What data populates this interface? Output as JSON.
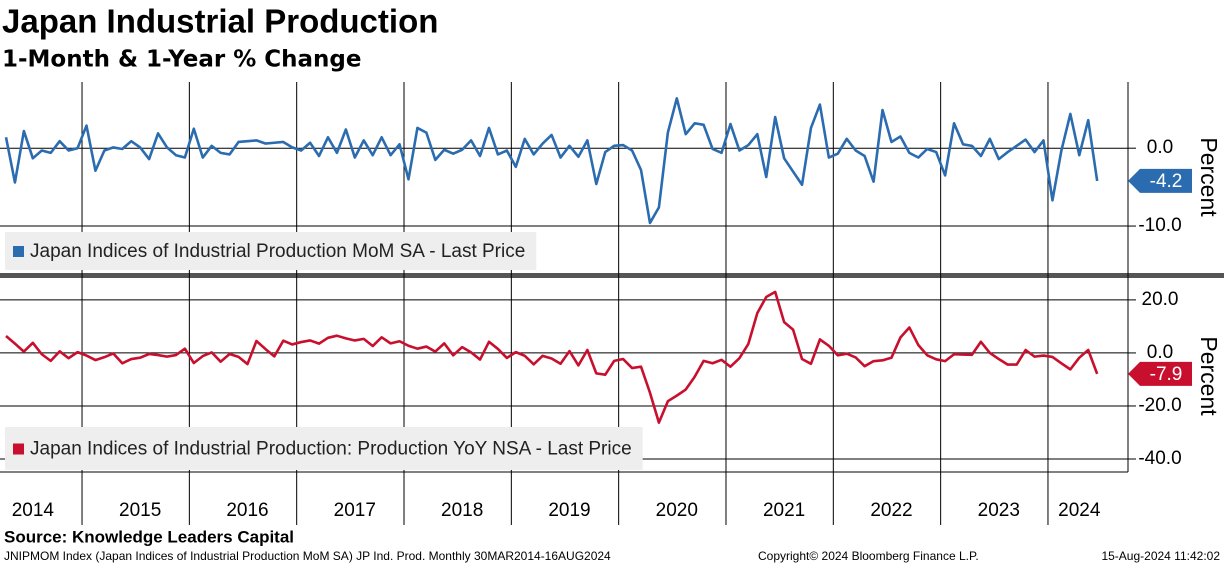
{
  "chart_data": [
    {
      "type": "line",
      "title": "Japan Industrial Production",
      "subtitle": "1-Month & 1-Year % Change",
      "y_label": "Percent",
      "ylim": [
        -15.9,
        8.5
      ],
      "yticks": [
        {
          "value": -10,
          "label": "-10.0"
        },
        {
          "value": 0,
          "label": "0.0"
        }
      ],
      "grid": true,
      "series": [
        {
          "name": "Japan Indices of Industrial Production MoM SA - Last Price",
          "color": "#2b6cb0",
          "values": [
            1.4,
            -4.4,
            2.2,
            -1.3,
            -0.3,
            -0.6,
            0.9,
            -0.3,
            0.0,
            2.9,
            -2.9,
            -0.3,
            0.1,
            -0.1,
            0.9,
            0.1,
            -1.4,
            1.9,
            0.1,
            -0.9,
            -1.2,
            2.5,
            -1.2,
            0.3,
            -0.6,
            -0.8,
            0.8,
            0.9,
            1.0,
            0.6,
            0.7,
            0.8,
            0.1,
            -0.3,
            0.7,
            -1.0,
            1.4,
            -0.6,
            2.4,
            -1.2,
            1.0,
            -0.9,
            1.4,
            -0.9,
            0.5,
            -4.0,
            2.6,
            2.0,
            -1.5,
            -0.2,
            -0.7,
            -0.2,
            1.0,
            -1.0,
            2.6,
            -0.8,
            -0.3,
            -2.4,
            1.2,
            -0.8,
            0.6,
            1.7,
            -1.2,
            0.3,
            -1.1,
            1.0,
            -4.6,
            -0.5,
            0.3,
            0.4,
            -0.3,
            -2.8,
            -9.6,
            -7.6,
            2.0,
            6.4,
            1.8,
            3.2,
            3.0,
            -0.1,
            -0.6,
            3.1,
            -0.3,
            0.4,
            1.8,
            -3.7,
            4.0,
            -1.3,
            -3.0,
            -4.7,
            2.6,
            5.6,
            -1.2,
            -0.7,
            1.2,
            -0.3,
            -1.0,
            -4.3,
            4.9,
            0.8,
            1.5,
            -0.6,
            -1.2,
            -0.1,
            -0.5,
            -3.5,
            3.2,
            0.5,
            0.3,
            -1.0,
            1.2,
            -1.4,
            -0.5,
            0.3,
            1.1,
            -0.5,
            1.0,
            -6.7,
            -0.3,
            4.4,
            -0.9,
            3.6,
            -4.2
          ]
        }
      ]
    },
    {
      "type": "line",
      "y_label": "Percent",
      "ylim": [
        -44.9,
        27.5
      ],
      "yticks": [
        {
          "value": 20,
          "label": "20.0"
        },
        {
          "value": 0,
          "label": "0.0"
        },
        {
          "value": -20,
          "label": "-20.0"
        },
        {
          "value": -40,
          "label": "-40.0"
        }
      ],
      "grid": true,
      "categories": [
        null,
        null,
        null,
        "2014",
        null,
        null,
        null,
        null,
        null,
        null,
        null,
        null,
        null,
        null,
        null,
        "2015",
        null,
        null,
        null,
        null,
        null,
        null,
        null,
        null,
        null,
        null,
        null,
        "2016",
        null,
        null,
        null,
        null,
        null,
        null,
        null,
        null,
        null,
        null,
        null,
        "2017",
        null,
        null,
        null,
        null,
        null,
        null,
        null,
        null,
        null,
        null,
        null,
        "2018",
        null,
        null,
        null,
        null,
        null,
        null,
        null,
        null,
        null,
        null,
        null,
        "2019",
        null,
        null,
        null,
        null,
        null,
        null,
        null,
        null,
        null,
        null,
        null,
        "2020",
        null,
        null,
        null,
        null,
        null,
        null,
        null,
        null,
        null,
        null,
        null,
        "2021",
        null,
        null,
        null,
        null,
        null,
        null,
        null,
        null,
        null,
        null,
        null,
        "2022",
        null,
        null,
        null,
        null,
        null,
        null,
        null,
        null,
        null,
        null,
        null,
        "2023",
        null,
        null,
        null,
        null,
        null,
        null,
        null,
        null,
        "2024",
        null,
        null
      ],
      "series": [
        {
          "name": "Japan Indices of Industrial Production: Production YoY NSA - Last Price",
          "color": "#c8102e",
          "values": [
            6.4,
            3.5,
            0.5,
            3.8,
            -0.5,
            -3.0,
            0.6,
            -2.0,
            0.3,
            -1.0,
            -2.7,
            -1.6,
            -0.2,
            -3.9,
            -2.3,
            -1.8,
            -0.4,
            -0.8,
            -1.4,
            -0.8,
            1.6,
            -3.8,
            -1.2,
            0.2,
            -3.3,
            -0.4,
            -1.5,
            -4.2,
            4.5,
            1.5,
            -1.3,
            4.6,
            3.2,
            4.1,
            4.7,
            3.5,
            5.7,
            6.5,
            5.5,
            4.7,
            5.3,
            2.6,
            5.9,
            3.6,
            4.4,
            2.7,
            1.6,
            2.4,
            0.5,
            3.6,
            -0.9,
            2.2,
            0.2,
            -2.5,
            4.2,
            1.5,
            -1.9,
            0.3,
            -1.1,
            -4.3,
            -1.1,
            -2.1,
            -4.1,
            0.7,
            -4.7,
            1.1,
            -7.7,
            -8.2,
            -3.0,
            -2.3,
            -5.7,
            -5.2,
            -15.0,
            -26.3,
            -18.2,
            -16.1,
            -13.8,
            -9.0,
            -3.0,
            -3.9,
            -2.6,
            -5.2,
            -2.0,
            3.4,
            15.0,
            21.1,
            23.0,
            11.6,
            8.8,
            -2.3,
            -4.1,
            5.1,
            2.7,
            -0.9,
            -0.3,
            -1.7,
            -5.0,
            -3.1,
            -2.8,
            -1.8,
            5.8,
            9.6,
            3.0,
            -0.9,
            -2.4,
            -3.1,
            -0.5,
            -0.6,
            -0.7,
            4.2,
            0.0,
            -2.3,
            -4.4,
            -4.4,
            1.1,
            -1.4,
            -1.0,
            -1.5,
            -3.9,
            -6.2,
            -1.8,
            1.1,
            -7.9
          ]
        }
      ]
    }
  ],
  "footer": {
    "source": "Source: Knowledge Leaders Capital",
    "index_note": "JNIPMOM Index (Japan Indices of Industrial Production MoM SA) JP Ind. Prod.  Monthly 30MAR2014-16AUG2024",
    "copyright": "Copyright© 2024 Bloomberg Finance L.P.",
    "timestamp": "15-Aug-2024 11:42:02"
  }
}
